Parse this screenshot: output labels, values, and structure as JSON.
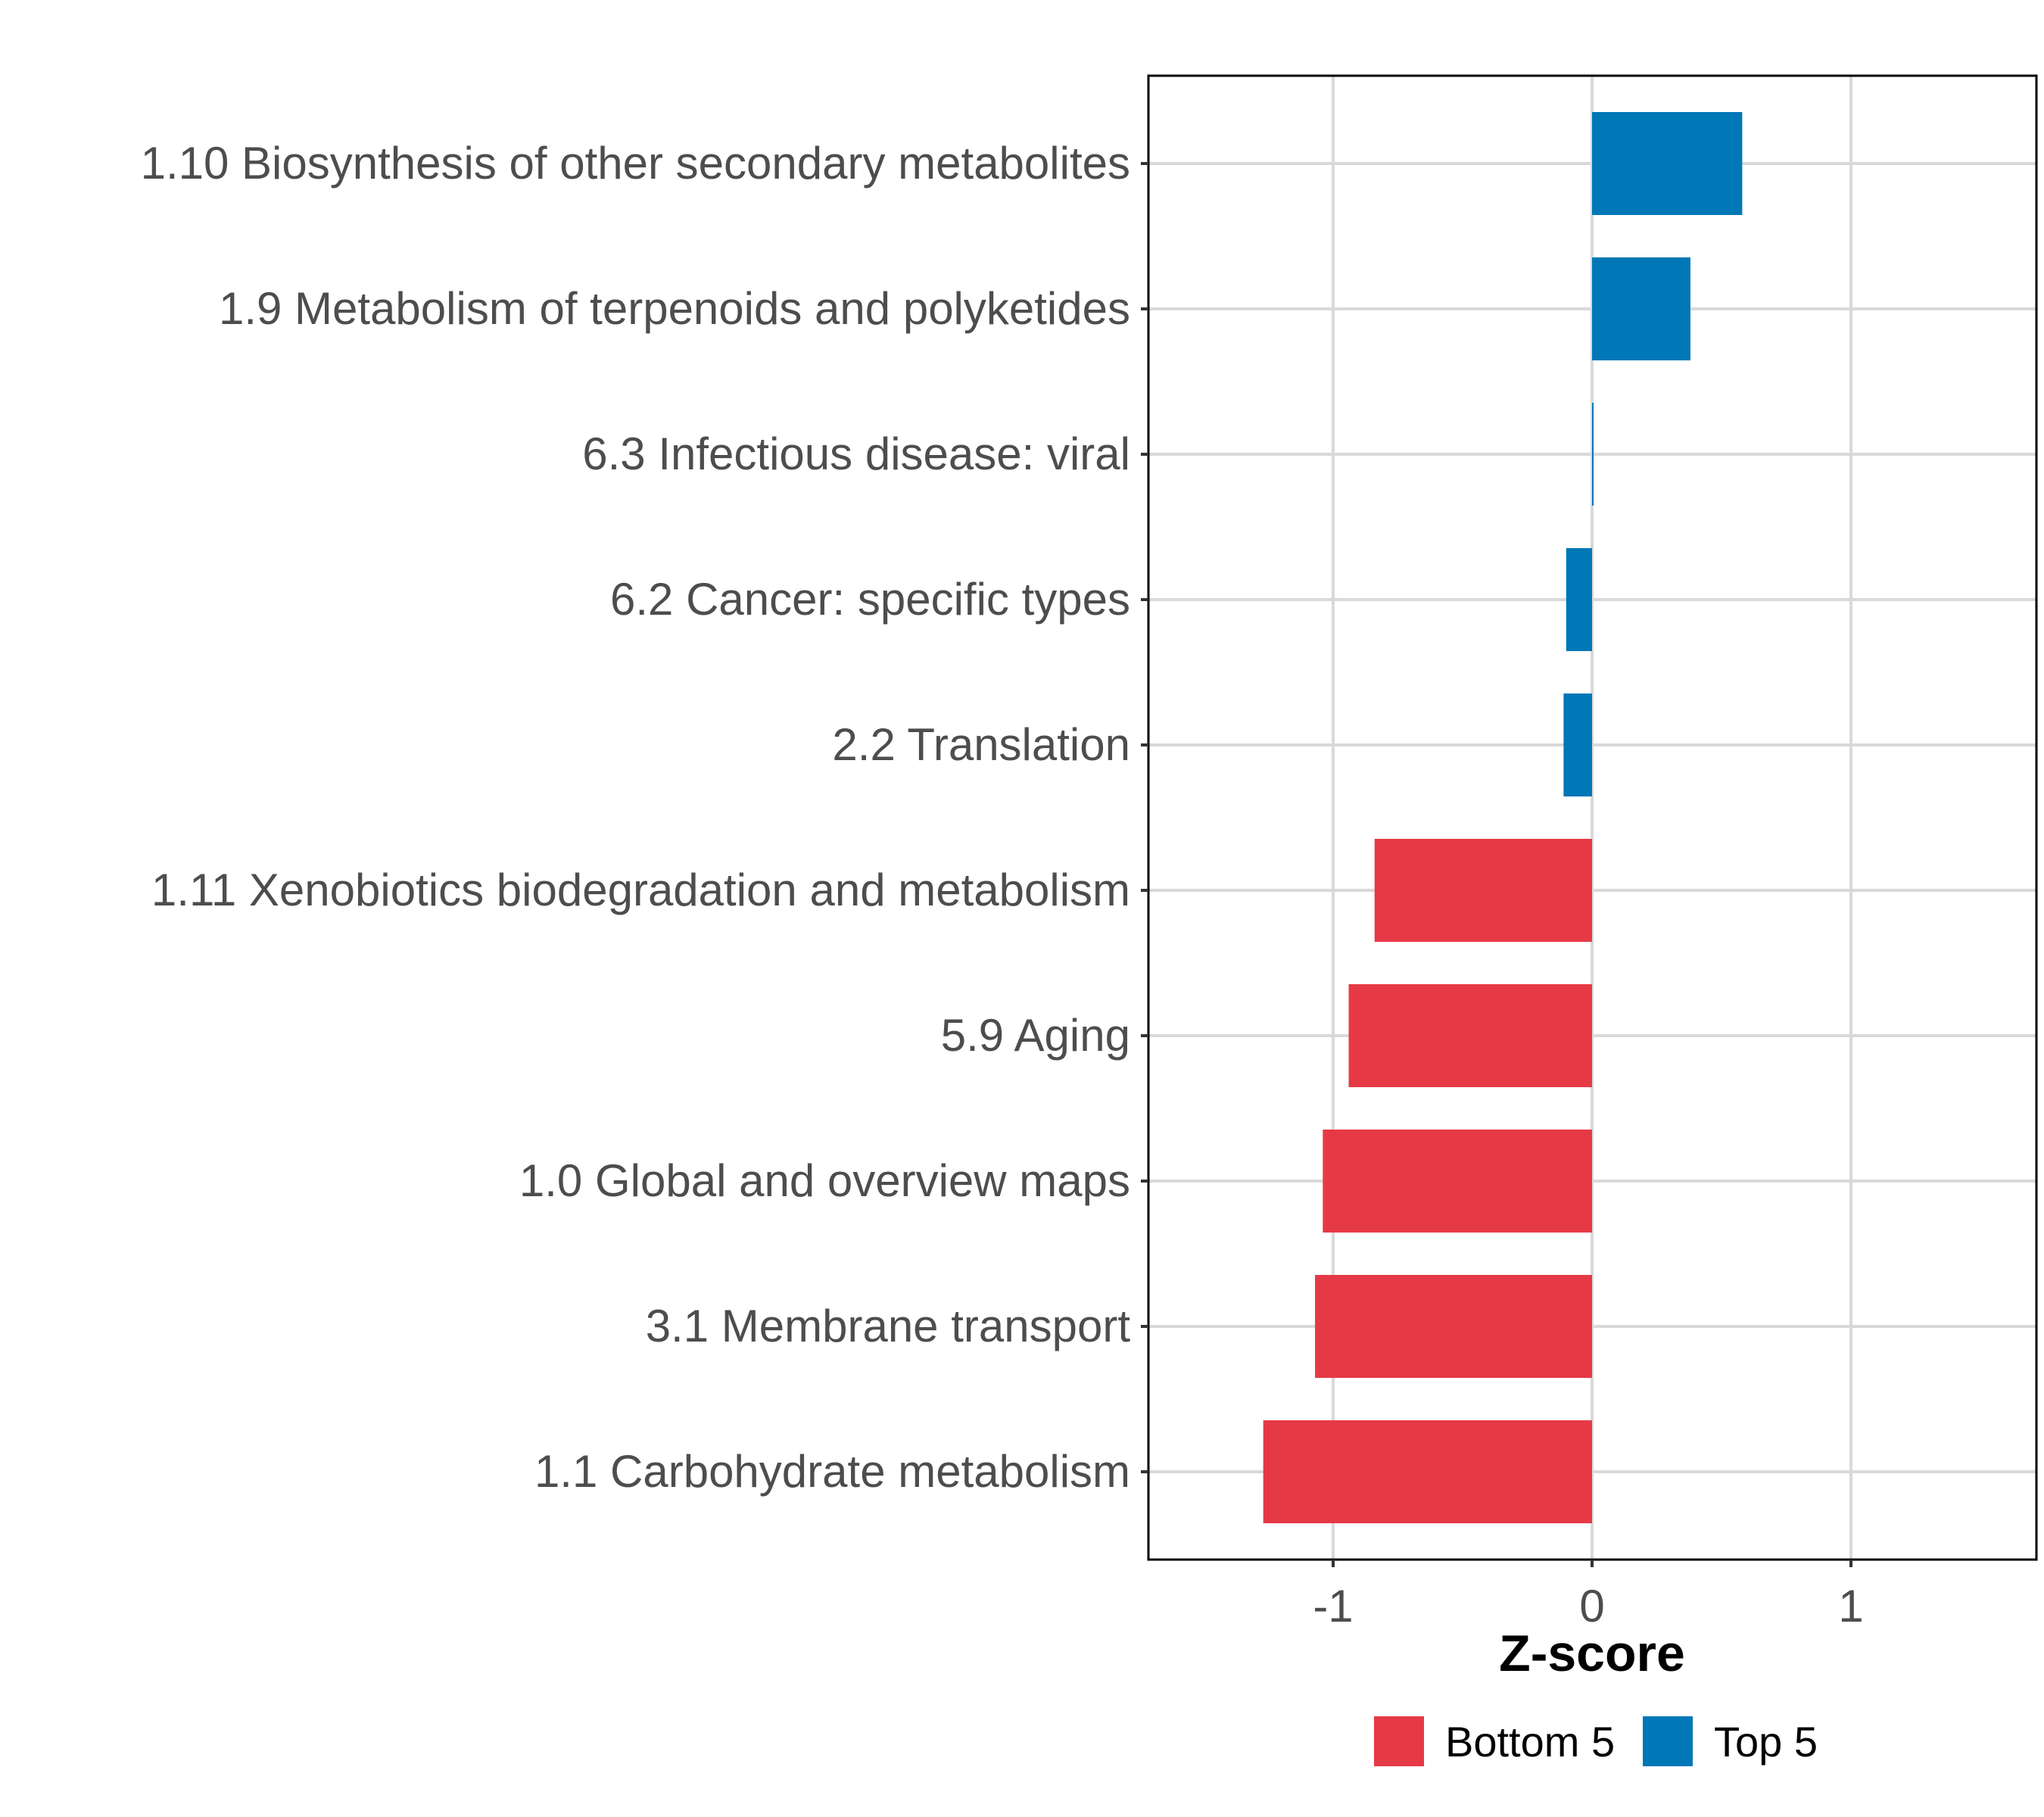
{
  "chart_data": {
    "type": "bar",
    "orientation": "horizontal",
    "title": "",
    "xlabel": "Z-score",
    "ylabel": "",
    "xlim": [
      -1.72,
      1.72
    ],
    "xticks": [
      -1,
      0,
      1
    ],
    "xtick_labels": [
      "-1",
      "0",
      "1"
    ],
    "grid": true,
    "legend_position": "bottom",
    "categories": [
      "1.10 Biosynthesis of other secondary metabolites",
      "1.9 Metabolism of terpenoids and polyketides",
      "6.3 Infectious disease: viral",
      "6.2 Cancer: specific types",
      "2.2 Translation",
      "1.11 Xenobiotics biodegradation and metabolism",
      "5.9 Aging",
      "1.0 Global and overview maps",
      "3.1 Membrane transport",
      "1.1 Carbohydrate metabolism"
    ],
    "values": [
      0.58,
      0.38,
      0.005,
      -0.1,
      -0.11,
      -0.84,
      -0.94,
      -1.04,
      -1.07,
      -1.27
    ],
    "groups": [
      "Top 5",
      "Top 5",
      "Top 5",
      "Top 5",
      "Top 5",
      "Bottom 5",
      "Bottom 5",
      "Bottom 5",
      "Bottom 5",
      "Bottom 5"
    ],
    "series": [
      {
        "name": "Bottom 5",
        "color": "#E63946"
      },
      {
        "name": "Top 5",
        "color": "#0077B6"
      }
    ]
  }
}
